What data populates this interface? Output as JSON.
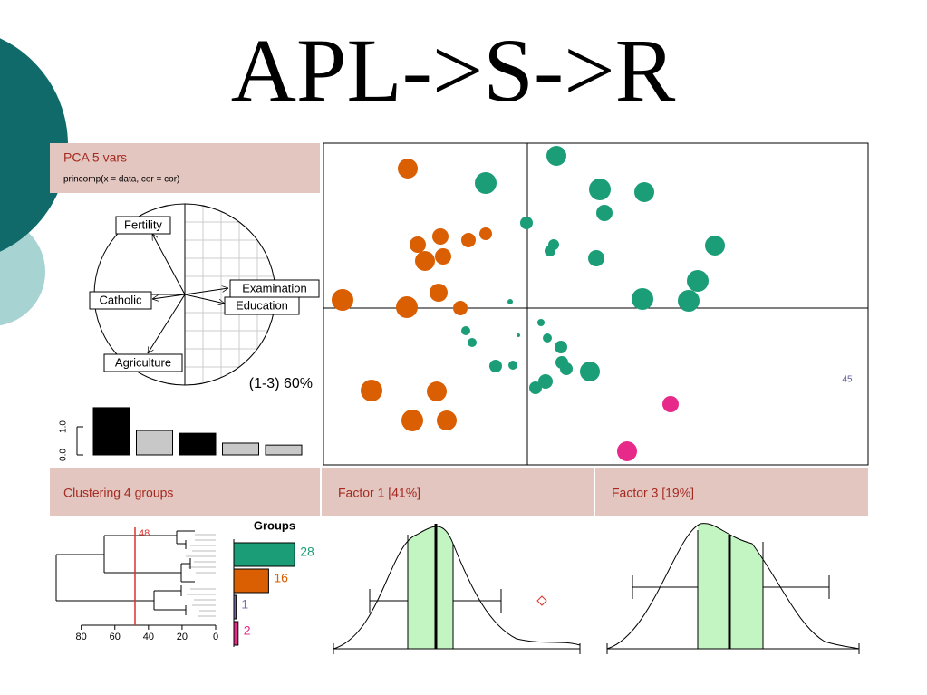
{
  "title": "APL->S->R",
  "pca": {
    "header": "PCA  5 vars",
    "call": "princomp(x = data, cor = cor)",
    "variables": [
      "Fertility",
      "Examination",
      "Catholic",
      "Education",
      "Agriculture"
    ],
    "variance_label": "(1-3) 60%",
    "scree": {
      "values": [
        1.68,
        0.87,
        0.77,
        0.42,
        0.35
      ],
      "colors": [
        "#000000",
        "#c8c8c8",
        "#000000",
        "#c8c8c8",
        "#c8c8c8"
      ],
      "ylim": [
        0,
        1.7
      ],
      "yticks": [
        {
          "value": 0,
          "label": "0.0"
        },
        {
          "value": 1,
          "label": "1.0"
        }
      ]
    }
  },
  "scatter": {
    "xlim": [
      -22.5,
      37.6
    ],
    "ylim": [
      -17.3,
      18.2
    ],
    "point_label": "45",
    "groups": [
      {
        "color": "#d95f02",
        "x": [
          -13.2,
          -12.1,
          -9.6,
          -11.3,
          -9.3,
          -6.5,
          -4.6,
          -9.8,
          -7.4,
          -13.3,
          -20.4,
          -17.2,
          -10.0,
          -12.7,
          -8.9
        ],
        "y": [
          15.4,
          7.0,
          7.9,
          5.2,
          5.7,
          7.5,
          8.2,
          1.7,
          0.0,
          0.1,
          0.9,
          -9.1,
          -9.2,
          -12.4,
          -12.4
        ],
        "sizes": [
          11,
          9,
          9,
          11,
          9,
          8,
          7,
          10,
          8,
          12,
          12,
          12,
          11,
          12,
          11
        ]
      },
      {
        "color": "#1b9e77",
        "x": [
          3.2,
          -4.6,
          8.0,
          12.9,
          8.5,
          -0.1,
          2.9,
          2.5,
          7.6,
          20.7,
          18.8,
          12.7,
          17.8,
          -1.9,
          -6.8,
          -6.1,
          1.5,
          2.2,
          -1.0,
          3.7,
          -3.5,
          -1.6,
          3.8,
          4.3,
          6.9,
          2.0,
          0.9
        ],
        "y": [
          16.8,
          13.8,
          13.1,
          12.8,
          10.5,
          9.4,
          7.0,
          6.3,
          5.5,
          6.9,
          3.0,
          1.0,
          0.8,
          0.7,
          -2.5,
          -3.8,
          -1.6,
          -3.3,
          -3.0,
          -4.3,
          -6.4,
          -6.3,
          -6.0,
          -6.7,
          -7.0,
          -8.1,
          -8.8
        ],
        "sizes": [
          11,
          12,
          12,
          11,
          9,
          7,
          6,
          6,
          9,
          11,
          12,
          12,
          12,
          3,
          5,
          5,
          4,
          5,
          2,
          7,
          7,
          5,
          7,
          7,
          11,
          8,
          7
        ]
      },
      {
        "color": "#e7298a",
        "x": [
          15.8,
          11.0
        ],
        "y": [
          -10.6,
          -15.8
        ],
        "sizes": [
          9,
          11
        ]
      }
    ]
  },
  "clustering": {
    "header": "Clustering  4 groups",
    "cut": 48,
    "xlim": [
      96,
      0
    ],
    "xticks": [
      80,
      60,
      40,
      20,
      0
    ],
    "groups_title": "Groups",
    "groups": {
      "values": [
        28,
        16,
        1,
        2
      ],
      "colors": [
        "#1b9e77",
        "#d95f02",
        "#7570b3",
        "#e7298a"
      ]
    }
  },
  "factors": [
    {
      "header": "Factor 1 [41%]"
    },
    {
      "header": "Factor 3 [19%]"
    }
  ]
}
